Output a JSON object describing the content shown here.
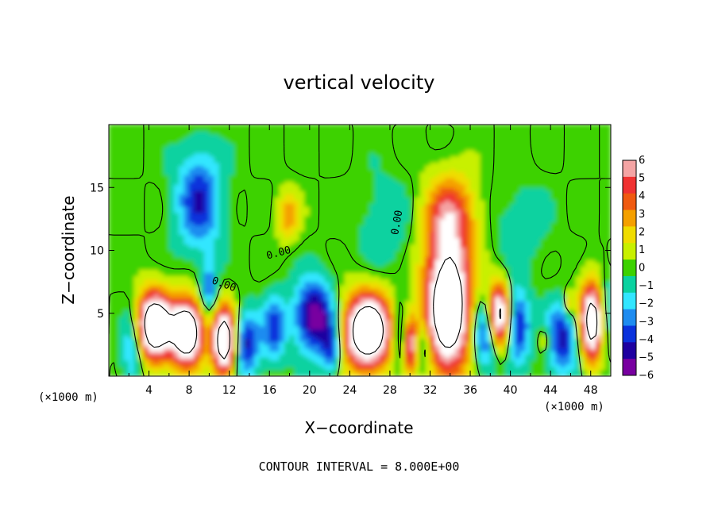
{
  "chart_data": {
    "type": "heatmap",
    "title": "vertical velocity",
    "xlabel": "X−coordinate",
    "ylabel": "Z−coordinate",
    "x_unit": "(×1000 m)",
    "z_unit": "(×1000 m)",
    "xlim": [
      0,
      50
    ],
    "ylim": [
      0,
      20
    ],
    "x_ticks": [
      4,
      8,
      12,
      16,
      20,
      24,
      28,
      32,
      36,
      40,
      44,
      48
    ],
    "y_ticks": [
      5,
      10,
      15
    ],
    "footer": "CONTOUR INTERVAL = 8.000E+00",
    "contour_label": "0.00",
    "colorbar": {
      "min": -6,
      "max": 6,
      "ticks": [
        "6",
        "5",
        "4",
        "3",
        "2",
        "1",
        "0",
        "−1",
        "−2",
        "−3",
        "−4",
        "−5",
        "−6"
      ],
      "colors": [
        "#f4a4a4",
        "#f03232",
        "#f05a10",
        "#f5a000",
        "#f0dc00",
        "#c8f000",
        "#3cd200",
        "#0ad2a0",
        "#32e6ff",
        "#1e8cf0",
        "#0a32dc",
        "#1e00a0",
        "#7800a0"
      ]
    },
    "features": [
      {
        "x": 4.5,
        "z": 4.0,
        "amp": 12,
        "sx": 1.3,
        "sz": 1.9
      },
      {
        "x": 7.8,
        "z": 3.5,
        "amp": 12,
        "sx": 1.1,
        "sz": 1.8
      },
      {
        "x": 11.5,
        "z": 2.8,
        "amp": 11,
        "sx": 0.8,
        "sz": 1.9
      },
      {
        "x": 25.8,
        "z": 3.6,
        "amp": 12,
        "sx": 1.7,
        "sz": 2.1
      },
      {
        "x": 30.0,
        "z": 2.6,
        "amp": 9,
        "sx": 0.6,
        "sz": 1.6
      },
      {
        "x": 33.8,
        "z": 5.5,
        "amp": 12,
        "sx": 1.6,
        "sz": 3.6
      },
      {
        "x": 34.0,
        "z": 12.8,
        "amp": 5,
        "sx": 1.8,
        "sz": 2.3
      },
      {
        "x": 38.8,
        "z": 4.8,
        "amp": 10,
        "sx": 0.8,
        "sz": 1.8
      },
      {
        "x": 48.3,
        "z": 4.3,
        "amp": 11,
        "sx": 1.0,
        "sz": 2.2
      },
      {
        "x": 17.9,
        "z": 12.8,
        "amp": 3.2,
        "sx": 0.8,
        "sz": 1.4
      },
      {
        "x": 43.5,
        "z": 2.9,
        "amp": 2.8,
        "sx": 0.6,
        "sz": 0.9
      },
      {
        "x": 45.8,
        "z": 5.7,
        "amp": 3,
        "sx": 0.3,
        "sz": 0.8
      },
      {
        "x": 9.0,
        "z": 14.0,
        "amp": -4.5,
        "sx": 1.6,
        "sz": 2.8
      },
      {
        "x": 2.5,
        "z": 2.5,
        "amp": -4,
        "sx": 0.8,
        "sz": 2.2
      },
      {
        "x": 10.0,
        "z": 7.0,
        "amp": -3.5,
        "sx": 0.6,
        "sz": 1.5
      },
      {
        "x": 13.8,
        "z": 2.6,
        "amp": -4.8,
        "sx": 0.9,
        "sz": 1.8
      },
      {
        "x": 16.5,
        "z": 3.8,
        "amp": -4.2,
        "sx": 0.8,
        "sz": 1.8
      },
      {
        "x": 20.5,
        "z": 4.8,
        "amp": -6.5,
        "sx": 1.4,
        "sz": 2.0
      },
      {
        "x": 22.2,
        "z": 2.2,
        "amp": -4,
        "sx": 0.7,
        "sz": 1.4
      },
      {
        "x": 29.3,
        "z": 3.0,
        "amp": -5,
        "sx": 0.7,
        "sz": 1.8
      },
      {
        "x": 31.2,
        "z": 2.4,
        "amp": -3.5,
        "sx": 0.7,
        "sz": 1.4
      },
      {
        "x": 37.6,
        "z": 3.5,
        "amp": -5.5,
        "sx": 0.9,
        "sz": 2.0
      },
      {
        "x": 40.8,
        "z": 4.0,
        "amp": -5,
        "sx": 0.8,
        "sz": 2.0
      },
      {
        "x": 45.2,
        "z": 3.0,
        "amp": -5,
        "sx": 1.3,
        "sz": 1.9
      },
      {
        "x": 49.4,
        "z": 4.5,
        "amp": -5,
        "sx": 0.6,
        "sz": 2.4
      },
      {
        "x": 27.5,
        "z": 12.0,
        "amp": -1.2,
        "sx": 2.0,
        "sz": 3.0
      },
      {
        "x": 41.0,
        "z": 12.0,
        "amp": -1.2,
        "sx": 2.0,
        "sz": 2.5
      }
    ]
  }
}
